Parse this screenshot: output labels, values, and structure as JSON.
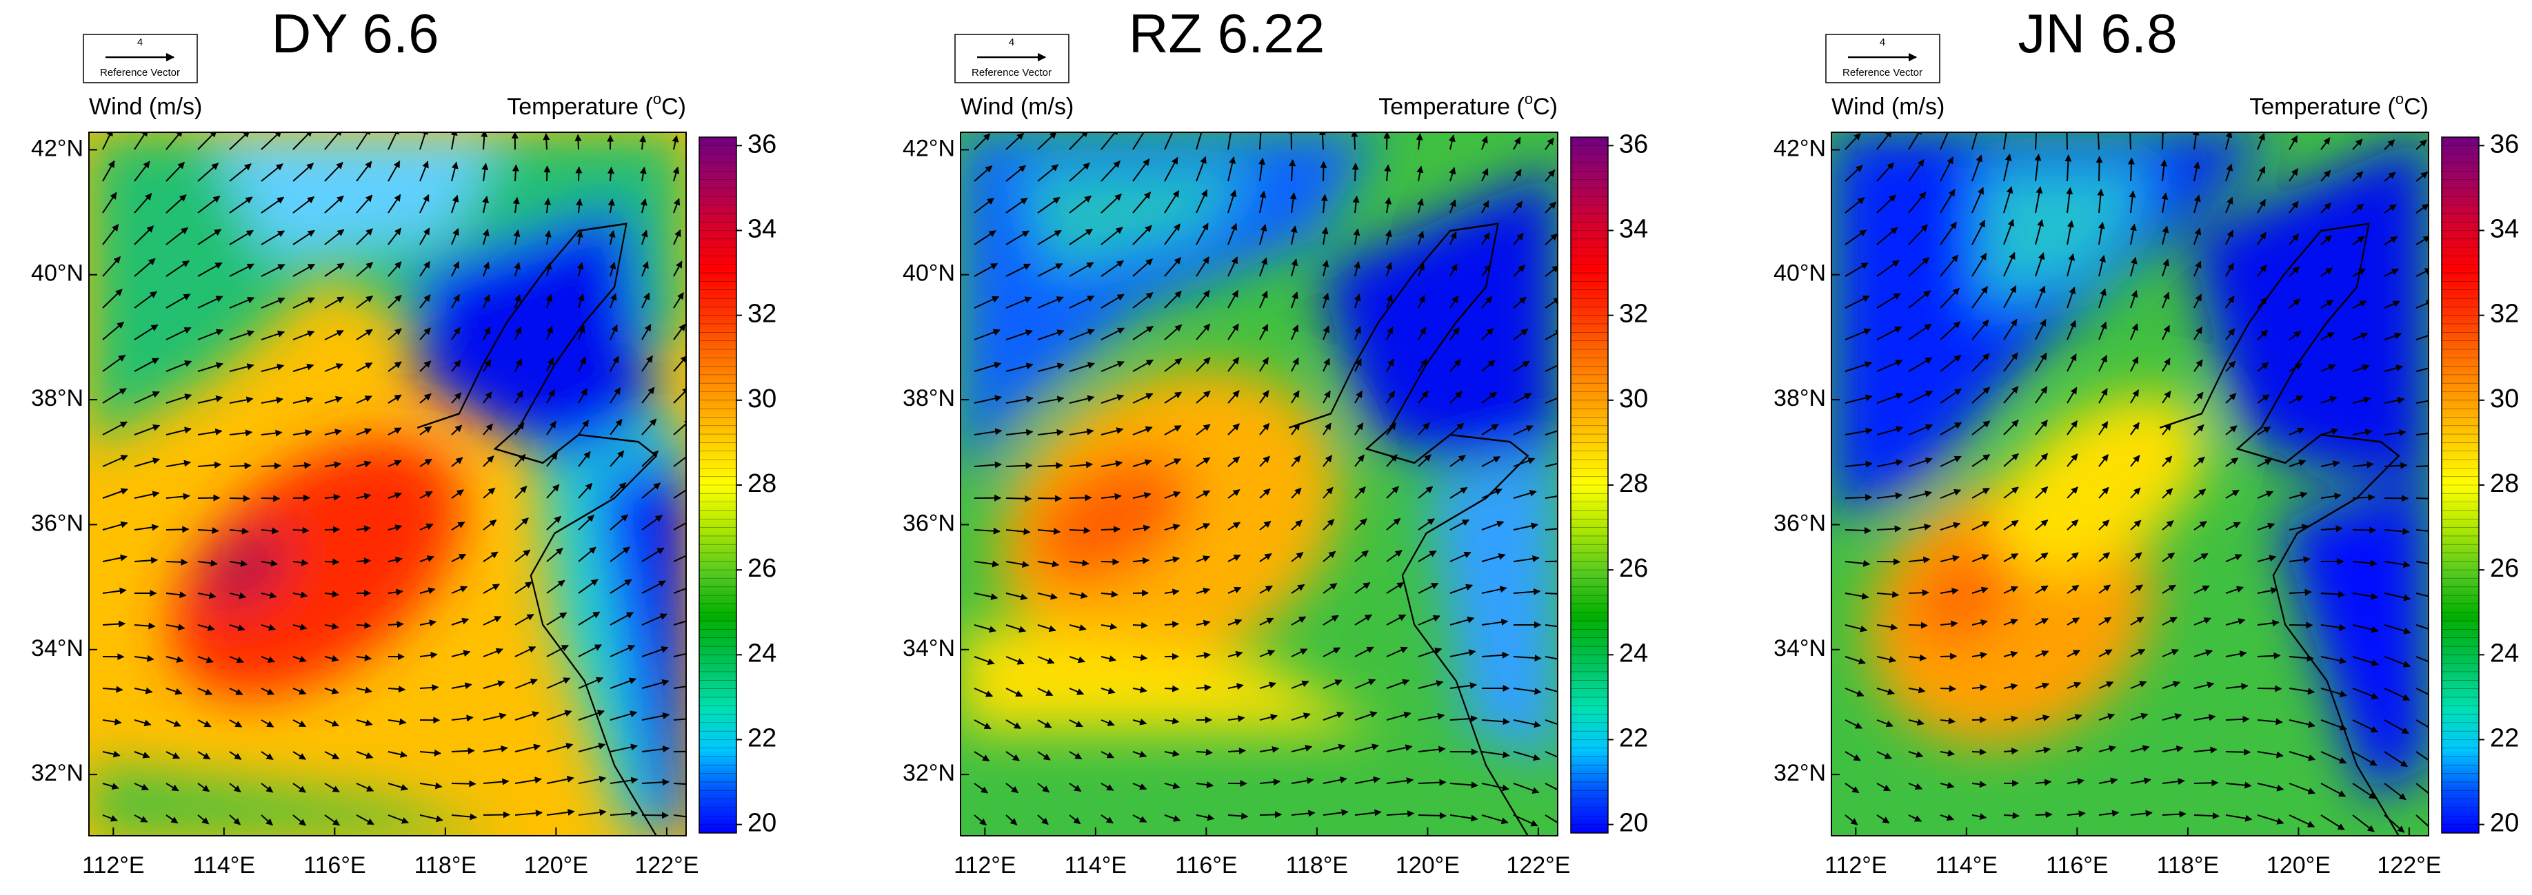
{
  "panels": [
    {
      "title": "DY 6.6"
    },
    {
      "title": "RZ 6.22"
    },
    {
      "title": "JN 6.8"
    }
  ],
  "wind_label": "Wind (m/s)",
  "temperature_label": {
    "prefix": "Temperature (",
    "sup": "o",
    "suffix": "C)"
  },
  "reference_vector": {
    "magnitude": "4",
    "label": "Reference Vector"
  },
  "map": {
    "lon_lim": [
      111.56,
      122.35
    ],
    "lat_lim": [
      31.02,
      42.28
    ],
    "lon_ticks": [
      {
        "value": 112,
        "label": "112°E"
      },
      {
        "value": 114,
        "label": "114°E"
      },
      {
        "value": 116,
        "label": "116°E"
      },
      {
        "value": 118,
        "label": "118°E"
      },
      {
        "value": 120,
        "label": "120°E"
      },
      {
        "value": 122,
        "label": "122°E"
      }
    ],
    "lat_ticks": [
      {
        "value": 32,
        "label": "32°N"
      },
      {
        "value": 34,
        "label": "34°N"
      },
      {
        "value": 36,
        "label": "36°N"
      },
      {
        "value": 38,
        "label": "38°N"
      },
      {
        "value": 40,
        "label": "40°N"
      },
      {
        "value": 42,
        "label": "42°N"
      }
    ]
  },
  "colorbar": {
    "lim": [
      19.8,
      36.2
    ],
    "ticks": [
      20,
      22,
      24,
      26,
      28,
      30,
      32,
      34,
      36
    ]
  }
}
